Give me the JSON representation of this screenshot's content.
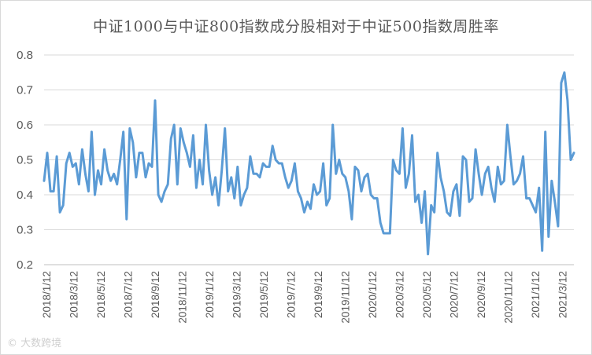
{
  "chart_data": {
    "type": "line",
    "title": "中证1000与中证800指数成分股相对于中证500指数周胜率",
    "ylim": [
      0.2,
      0.8
    ],
    "yticks": [
      "0.2",
      "0.3",
      "0.4",
      "0.5",
      "0.6",
      "0.7",
      "0.8"
    ],
    "grid": "horizontal",
    "legend": "none",
    "line_color": "#5B9BD5",
    "x_labels": [
      "2018/1/12",
      "2018/3/12",
      "2018/5/12",
      "2018/7/12",
      "2018/9/12",
      "2018/11/12",
      "2019/1/12",
      "2019/3/12",
      "2019/5/12",
      "2019/7/12",
      "2019/9/12",
      "2019/11/12",
      "2020/1/12",
      "2020/3/12",
      "2020/5/12",
      "2020/7/12",
      "2020/9/12",
      "2020/11/12",
      "2021/1/12",
      "2021/3/12"
    ],
    "values": [
      0.44,
      0.52,
      0.41,
      0.41,
      0.51,
      0.35,
      0.37,
      0.49,
      0.52,
      0.48,
      0.49,
      0.43,
      0.53,
      0.46,
      0.41,
      0.58,
      0.4,
      0.47,
      0.43,
      0.53,
      0.47,
      0.44,
      0.46,
      0.43,
      0.5,
      0.58,
      0.33,
      0.59,
      0.55,
      0.45,
      0.52,
      0.52,
      0.45,
      0.49,
      0.48,
      0.67,
      0.4,
      0.38,
      0.41,
      0.43,
      0.56,
      0.6,
      0.43,
      0.59,
      0.55,
      0.52,
      0.48,
      0.57,
      0.42,
      0.5,
      0.43,
      0.6,
      0.47,
      0.4,
      0.45,
      0.37,
      0.47,
      0.59,
      0.41,
      0.45,
      0.39,
      0.48,
      0.37,
      0.4,
      0.42,
      0.51,
      0.46,
      0.46,
      0.45,
      0.49,
      0.48,
      0.48,
      0.54,
      0.5,
      0.49,
      0.49,
      0.45,
      0.42,
      0.44,
      0.49,
      0.41,
      0.39,
      0.35,
      0.38,
      0.36,
      0.43,
      0.4,
      0.41,
      0.49,
      0.37,
      0.39,
      0.6,
      0.46,
      0.5,
      0.46,
      0.45,
      0.41,
      0.33,
      0.48,
      0.47,
      0.41,
      0.45,
      0.46,
      0.4,
      0.39,
      0.39,
      0.32,
      0.29,
      0.29,
      0.29,
      0.5,
      0.47,
      0.46,
      0.59,
      0.42,
      0.46,
      0.57,
      0.38,
      0.4,
      0.32,
      0.41,
      0.23,
      0.37,
      0.35,
      0.52,
      0.45,
      0.41,
      0.35,
      0.34,
      0.41,
      0.43,
      0.34,
      0.51,
      0.5,
      0.38,
      0.39,
      0.53,
      0.46,
      0.4,
      0.46,
      0.48,
      0.42,
      0.38,
      0.48,
      0.43,
      0.44,
      0.6,
      0.51,
      0.43,
      0.44,
      0.46,
      0.51,
      0.39,
      0.39,
      0.37,
      0.35,
      0.42,
      0.24,
      0.58,
      0.28,
      0.44,
      0.38,
      0.31,
      0.72,
      0.75,
      0.67,
      0.5,
      0.52
    ]
  },
  "watermark_text": "大数跨境"
}
